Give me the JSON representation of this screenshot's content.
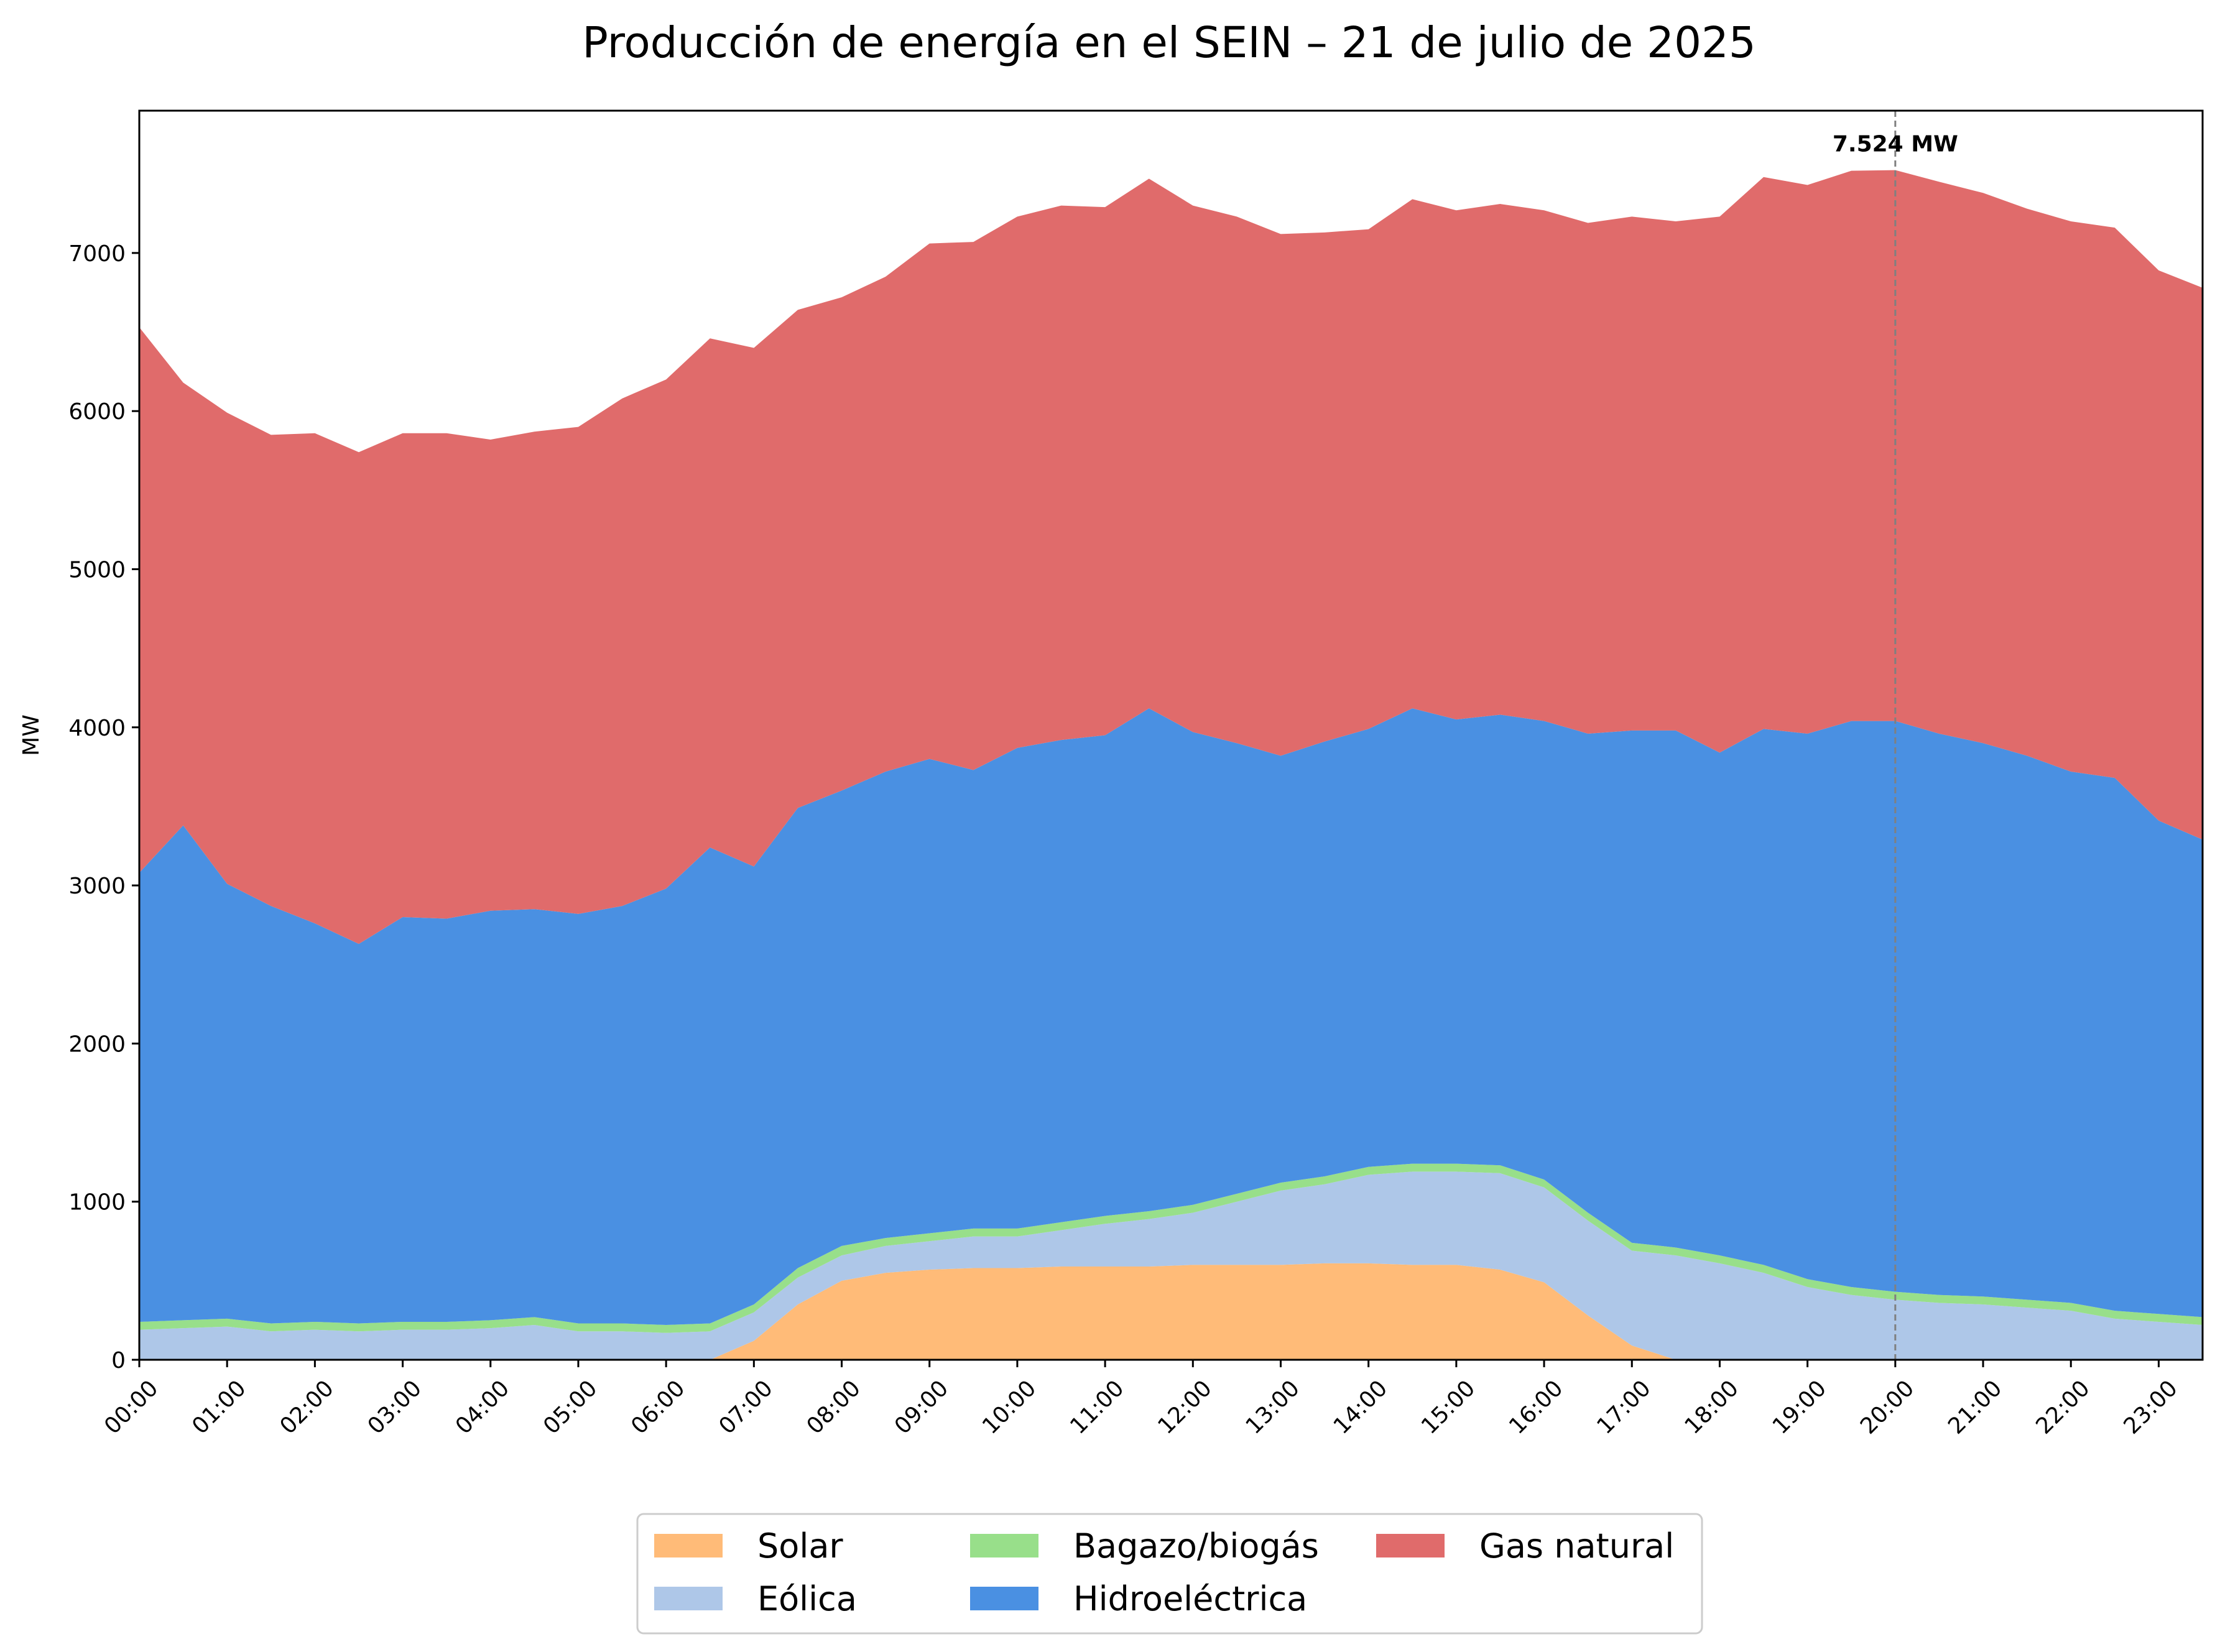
{
  "chart_data": {
    "type": "area",
    "stacked": true,
    "title": "Producción de energía en el SEIN – 21 de julio de 2025",
    "xlabel": "",
    "ylabel": "MW",
    "ylim": [
      0,
      7900
    ],
    "yticks": [
      0,
      1000,
      2000,
      3000,
      4000,
      5000,
      6000,
      7000
    ],
    "ytick_labels": [
      "0",
      "1000",
      "2000",
      "3000",
      "4000",
      "5000",
      "6000",
      "7000"
    ],
    "xtick_labels": [
      "00:00",
      "01:00",
      "02:00",
      "03:00",
      "04:00",
      "05:00",
      "06:00",
      "07:00",
      "08:00",
      "09:00",
      "10:00",
      "11:00",
      "12:00",
      "13:00",
      "14:00",
      "15:00",
      "16:00",
      "17:00",
      "18:00",
      "19:00",
      "20:00",
      "21:00",
      "22:00",
      "23:00"
    ],
    "x": [
      "00:00",
      "00:30",
      "01:00",
      "01:30",
      "02:00",
      "02:30",
      "03:00",
      "03:30",
      "04:00",
      "04:30",
      "05:00",
      "05:30",
      "06:00",
      "06:30",
      "07:00",
      "07:30",
      "08:00",
      "08:30",
      "09:00",
      "09:30",
      "10:00",
      "10:30",
      "11:00",
      "11:30",
      "12:00",
      "12:30",
      "13:00",
      "13:30",
      "14:00",
      "14:30",
      "15:00",
      "15:30",
      "16:00",
      "16:30",
      "17:00",
      "17:30",
      "18:00",
      "18:30",
      "19:00",
      "19:30",
      "20:00",
      "20:30",
      "21:00",
      "21:30",
      "22:00",
      "22:30",
      "23:00",
      "23:30"
    ],
    "series": [
      {
        "name": "Solar",
        "color": "#ffbb78",
        "values": [
          0,
          0,
          0,
          0,
          0,
          0,
          0,
          0,
          0,
          0,
          0,
          0,
          0,
          0,
          120,
          350,
          500,
          550,
          570,
          580,
          580,
          590,
          590,
          590,
          600,
          600,
          600,
          610,
          610,
          600,
          600,
          570,
          490,
          280,
          90,
          0,
          0,
          0,
          0,
          0,
          0,
          0,
          0,
          0,
          0,
          0,
          0,
          0
        ]
      },
      {
        "name": "Eólica",
        "color": "#aec7e8",
        "values": [
          190,
          200,
          210,
          180,
          190,
          180,
          190,
          190,
          200,
          220,
          180,
          180,
          170,
          180,
          180,
          170,
          160,
          170,
          180,
          200,
          200,
          230,
          270,
          300,
          330,
          400,
          470,
          500,
          560,
          590,
          590,
          610,
          600,
          600,
          600,
          660,
          610,
          550,
          460,
          410,
          380,
          360,
          350,
          330,
          310,
          260,
          240,
          220
        ]
      },
      {
        "name": "Bagazo/biogás",
        "color": "#98df8a",
        "values": [
          50,
          50,
          50,
          50,
          50,
          50,
          50,
          50,
          50,
          50,
          50,
          50,
          50,
          50,
          50,
          60,
          60,
          50,
          50,
          50,
          50,
          50,
          50,
          50,
          50,
          50,
          50,
          50,
          50,
          50,
          50,
          50,
          50,
          50,
          50,
          50,
          50,
          50,
          50,
          50,
          50,
          50,
          50,
          50,
          50,
          50,
          50,
          50
        ]
      },
      {
        "name": "Hidroeléctrica",
        "color": "#4a90e2",
        "values": [
          2840,
          3130,
          2750,
          2640,
          2520,
          2400,
          2560,
          2550,
          2590,
          2580,
          2590,
          2640,
          2760,
          3010,
          2770,
          2910,
          2880,
          2950,
          3000,
          2900,
          3040,
          3050,
          3040,
          3180,
          2990,
          2850,
          2700,
          2750,
          2770,
          2880,
          2810,
          2850,
          2900,
          3030,
          3240,
          3270,
          3180,
          3390,
          3450,
          3580,
          3610,
          3550,
          3500,
          3440,
          3360,
          3370,
          3120,
          3020
        ]
      },
      {
        "name": "Gas natural",
        "color": "#e06b6b",
        "values": [
          3450,
          2800,
          2980,
          2980,
          3100,
          3110,
          3060,
          3070,
          2980,
          3020,
          3080,
          3210,
          3220,
          3220,
          3280,
          3150,
          3120,
          3130,
          3260,
          3340,
          3360,
          3380,
          3340,
          3350,
          3330,
          3330,
          3300,
          3220,
          3160,
          3220,
          3220,
          3230,
          3230,
          3230,
          3250,
          3220,
          3390,
          3490,
          3470,
          3480,
          3484,
          3490,
          3480,
          3460,
          3480,
          3480,
          3480,
          3490
        ]
      }
    ],
    "annotation": {
      "x": "20:00",
      "y": 7524,
      "label": "7.524 MW"
    },
    "grid": false,
    "legend_position": "bottom-center",
    "legend_labels": {
      "solar": "Solar",
      "eolica": "Eólica",
      "bagazo": "Bagazo/biogás",
      "hidro": "Hidroeléctrica",
      "gas": "Gas natural"
    },
    "colors": {
      "solar": "#ffbb78",
      "eolica": "#aec7e8",
      "bagazo": "#98df8a",
      "hidro": "#4a90e2",
      "gas": "#e06b6b"
    }
  }
}
